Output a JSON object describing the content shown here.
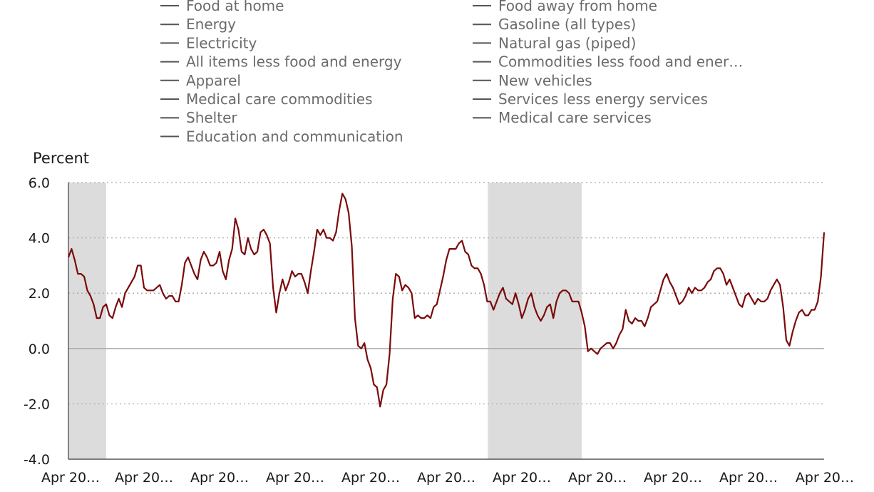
{
  "chart_data": {
    "type": "line",
    "title": "",
    "ylabel": "Percent",
    "xlabel": "",
    "ylim": [
      -4.0,
      6.0
    ],
    "y_ticks": [
      "6.0",
      "4.0",
      "2.0",
      "0.0",
      "-2.0",
      "-4.0"
    ],
    "x_tick_labels": [
      "Apr 20…",
      "Apr 20…",
      "Apr 20…",
      "Apr 20…",
      "Apr 20…",
      "Apr 20…",
      "Apr 20…",
      "Apr 20…",
      "Apr 20…",
      "Apr 20…",
      "Apr 20…"
    ],
    "grid": "horizontal dotted",
    "legend_placement": "top",
    "line_color": "#7a0a0a",
    "legend_swatch_color": "#555555",
    "shade_color": "#dcdcdc",
    "legend": [
      "Food at home",
      "Food away from home",
      "Energy",
      "Gasoline (all types)",
      "Electricity",
      "Natural gas (piped)",
      "All items less food and energy",
      "Commodities less food and ener…",
      "Apparel",
      "New vehicles",
      "Medical care commodities",
      "Services less energy services",
      "Shelter",
      "Medical care services",
      "Education and communication"
    ],
    "recession_bands_months": [
      [
        0,
        12
      ],
      [
        133,
        163
      ]
    ],
    "series": [
      {
        "values": [
          3.3,
          3.6,
          3.2,
          2.7,
          2.7,
          2.6,
          2.1,
          1.9,
          1.6,
          1.1,
          1.1,
          1.5,
          1.6,
          1.2,
          1.1,
          1.5,
          1.8,
          1.5,
          2.0,
          2.2,
          2.4,
          2.6,
          3.0,
          3.0,
          2.2,
          2.1,
          2.1,
          2.1,
          2.2,
          2.3,
          2.0,
          1.8,
          1.9,
          1.9,
          1.7,
          1.7,
          2.3,
          3.1,
          3.3,
          3.0,
          2.7,
          2.5,
          3.2,
          3.5,
          3.3,
          3.0,
          3.0,
          3.1,
          3.5,
          2.8,
          2.5,
          3.2,
          3.6,
          4.7,
          4.3,
          3.5,
          3.4,
          4.0,
          3.6,
          3.4,
          3.5,
          4.2,
          4.3,
          4.1,
          3.8,
          2.2,
          1.3,
          2.0,
          2.5,
          2.1,
          2.4,
          2.8,
          2.6,
          2.7,
          2.7,
          2.4,
          2.0,
          2.8,
          3.5,
          4.3,
          4.1,
          4.3,
          4.0,
          4.0,
          3.9,
          4.2,
          5.0,
          5.6,
          5.4,
          4.9,
          3.7,
          1.1,
          0.1,
          0.0,
          0.2,
          -0.4,
          -0.7,
          -1.3,
          -1.4,
          -2.1,
          -1.5,
          -1.3,
          -0.2,
          1.8,
          2.7,
          2.6,
          2.1,
          2.3,
          2.2,
          2.0,
          1.1,
          1.2,
          1.1,
          1.1,
          1.2,
          1.1,
          1.5,
          1.6,
          2.1,
          2.6,
          3.2,
          3.6,
          3.6,
          3.6,
          3.8,
          3.9,
          3.5,
          3.4,
          3.0,
          2.9,
          2.9,
          2.7,
          2.3,
          1.7,
          1.7,
          1.4,
          1.7,
          2.0,
          2.2,
          1.8,
          1.7,
          1.6,
          2.0,
          1.6,
          1.1,
          1.4,
          1.8,
          2.0,
          1.5,
          1.2,
          1.0,
          1.2,
          1.5,
          1.6,
          1.1,
          1.7,
          2.0,
          2.1,
          2.1,
          2.0,
          1.7,
          1.7,
          1.7,
          1.3,
          0.8,
          -0.1,
          0.0,
          -0.1,
          -0.2,
          0.0,
          0.1,
          0.2,
          0.2,
          0.0,
          0.2,
          0.5,
          0.7,
          1.4,
          1.0,
          0.9,
          1.1,
          1.0,
          1.0,
          0.8,
          1.1,
          1.5,
          1.6,
          1.7,
          2.1,
          2.5,
          2.7,
          2.4,
          2.2,
          1.9,
          1.6,
          1.7,
          1.9,
          2.2,
          2.0,
          2.2,
          2.1,
          2.1,
          2.2,
          2.4,
          2.5,
          2.8,
          2.9,
          2.9,
          2.7,
          2.3,
          2.5,
          2.2,
          1.9,
          1.6,
          1.5,
          1.9,
          2.0,
          1.8,
          1.6,
          1.8,
          1.7,
          1.7,
          1.8,
          2.1,
          2.3,
          2.5,
          2.3,
          1.5,
          0.3,
          0.1,
          0.6,
          1.0,
          1.3,
          1.4,
          1.2,
          1.2,
          1.4,
          1.4,
          1.7,
          2.6,
          4.2
        ]
      }
    ]
  }
}
